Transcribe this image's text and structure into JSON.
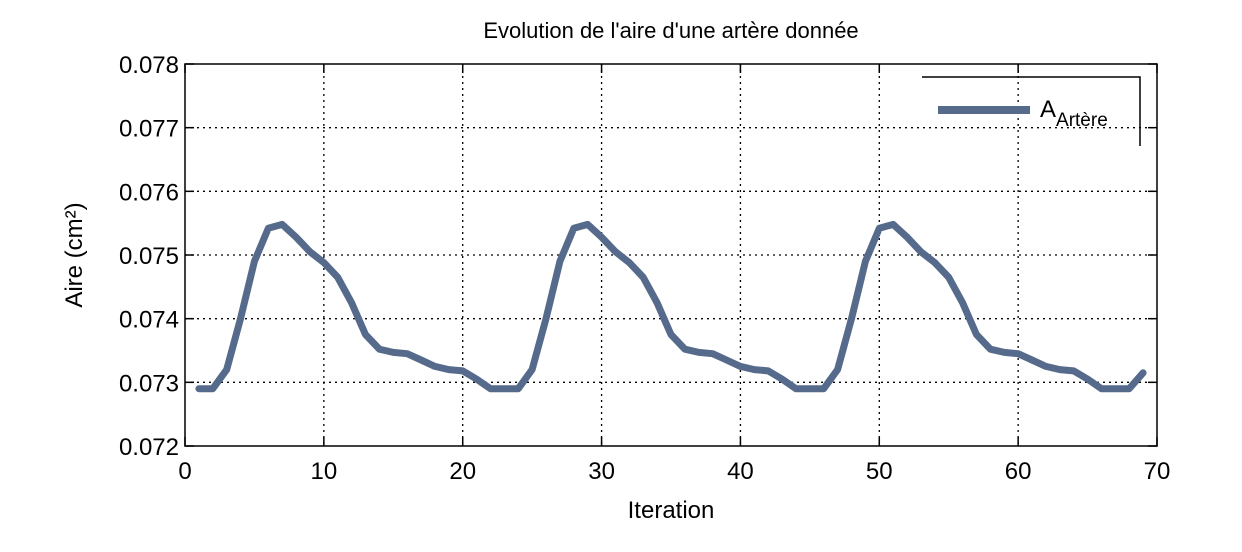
{
  "chart_data": {
    "type": "line",
    "title": "Evolution de l'aire d'une artère donnée",
    "xlabel": "Iteration",
    "ylabel": "Aire (cm²)",
    "xlim": [
      0,
      70
    ],
    "ylim": [
      0.072,
      0.078
    ],
    "xticks": [
      0,
      10,
      20,
      30,
      40,
      50,
      60,
      70
    ],
    "xtick_labels": [
      "0",
      "10",
      "20",
      "30",
      "40",
      "50",
      "60",
      "70"
    ],
    "yticks": [
      0.072,
      0.073,
      0.074,
      0.075,
      0.076,
      0.077,
      0.078
    ],
    "ytick_labels": [
      "0.072",
      "0.073",
      "0.074",
      "0.075",
      "0.076",
      "0.077",
      "0.078"
    ],
    "grid": true,
    "legend_position": "top-right",
    "legend_main": "A",
    "legend_sub": "Artère",
    "series_color": "#566b8c",
    "series": [
      {
        "name": "A_Artère",
        "x": [
          1,
          2,
          3,
          4,
          5,
          6,
          7,
          8,
          9,
          10,
          11,
          12,
          13,
          14,
          15,
          16,
          17,
          18,
          19,
          20,
          21,
          22,
          23,
          24,
          25,
          26,
          27,
          28,
          29,
          30,
          31,
          32,
          33,
          34,
          35,
          36,
          37,
          38,
          39,
          40,
          41,
          42,
          43,
          44,
          45,
          46,
          47,
          48,
          49,
          50,
          51,
          52,
          53,
          54,
          55,
          56,
          57,
          58,
          59,
          60,
          61,
          62,
          63,
          64,
          65,
          66,
          67,
          68,
          69
        ],
        "y": [
          0.0729,
          0.0729,
          0.0732,
          0.074,
          0.0749,
          0.07542,
          0.07548,
          0.07528,
          0.07505,
          0.07488,
          0.07465,
          0.07425,
          0.07375,
          0.07352,
          0.07347,
          0.07345,
          0.07335,
          0.07325,
          0.0732,
          0.07318,
          0.07305,
          0.0729,
          0.0729,
          0.0729,
          0.0732,
          0.074,
          0.0749,
          0.07542,
          0.07548,
          0.07528,
          0.07505,
          0.07488,
          0.07465,
          0.07425,
          0.07375,
          0.07352,
          0.07347,
          0.07345,
          0.07335,
          0.07325,
          0.0732,
          0.07318,
          0.07305,
          0.0729,
          0.0729,
          0.0729,
          0.0732,
          0.074,
          0.0749,
          0.07542,
          0.07548,
          0.07528,
          0.07505,
          0.07488,
          0.07465,
          0.07425,
          0.07375,
          0.07352,
          0.07347,
          0.07345,
          0.07335,
          0.07325,
          0.0732,
          0.07318,
          0.07305,
          0.0729,
          0.0729,
          0.0729,
          0.07315
        ]
      }
    ]
  }
}
